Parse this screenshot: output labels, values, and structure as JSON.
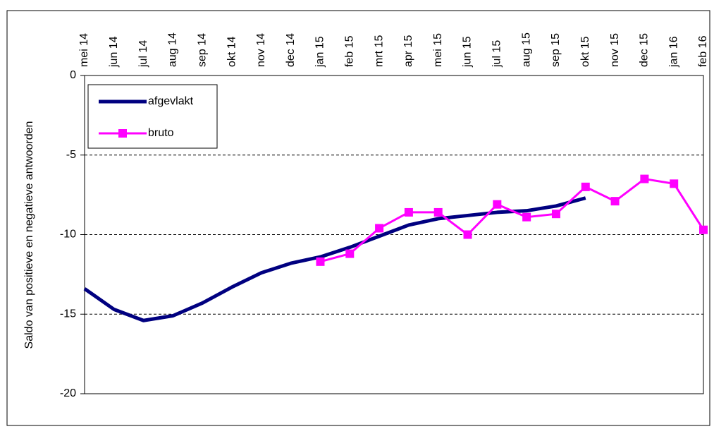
{
  "chart_data": {
    "type": "line",
    "y_label": "Saldo van positieve en negatieve antwoorden",
    "categories": [
      "mei 14",
      "jun 14",
      "jul 14",
      "aug 14",
      "sep 14",
      "okt 14",
      "nov 14",
      "dec 14",
      "jan 15",
      "feb 15",
      "mrt 15",
      "apr 15",
      "mei 15",
      "jun 15",
      "jul 15",
      "aug 15",
      "sep 15",
      "okt 15",
      "nov 15",
      "dec 15",
      "jan 16",
      "feb 16"
    ],
    "series": [
      {
        "name": "afgevlakt",
        "color": "#000080",
        "values": [
          -13.4,
          -14.7,
          -15.4,
          -15.1,
          -14.3,
          -13.3,
          -12.4,
          -11.8,
          -11.4,
          -10.8,
          -10.1,
          -9.4,
          -9.0,
          -8.8,
          -8.6,
          -8.5,
          -8.2,
          -7.7,
          null,
          null,
          null,
          null
        ]
      },
      {
        "name": "bruto",
        "color": "#ff00ff",
        "values": [
          null,
          null,
          null,
          null,
          null,
          null,
          null,
          null,
          -11.7,
          -11.2,
          -9.6,
          -8.6,
          -8.6,
          -10.0,
          -8.1,
          -8.9,
          -8.7,
          -7.0,
          -7.9,
          -6.5,
          -6.8,
          -9.7
        ]
      }
    ],
    "ylim": [
      -20,
      0
    ],
    "yticks": [
      0,
      -5,
      -10,
      -15,
      -20
    ],
    "grid": true,
    "legend": "upper left"
  }
}
